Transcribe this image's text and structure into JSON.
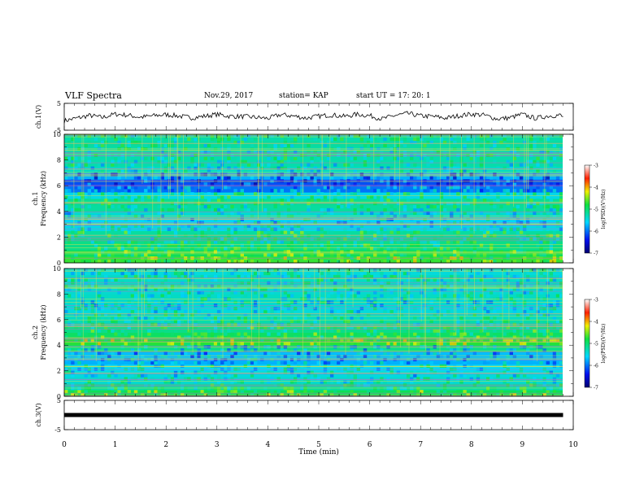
{
  "header": {
    "title": "VLF Spectra",
    "date": "Nov.29, 2017",
    "station": "station= KAP",
    "start": "start  UT  =    17: 20: 1"
  },
  "colors": {
    "bg_blue": "#1b3fd9",
    "cyan": "#1fd0e6",
    "green": "#5fe07a",
    "yellow": "#e8e04a",
    "red": "#e83a2a",
    "trace": "#000000"
  },
  "chart_data": [
    {
      "type": "line",
      "panel": "ch1-waveform",
      "ylabel": "ch.1(V)",
      "ylim": [
        -5,
        5
      ],
      "ytick_labels": [
        "5",
        "-5"
      ],
      "xlim": [
        0,
        10
      ],
      "x": [
        0,
        0.25,
        0.5,
        0.75,
        1.0,
        1.25,
        1.5,
        1.75,
        2.0,
        2.25,
        2.5,
        2.75,
        3.0,
        3.25,
        3.5,
        3.75,
        4.0,
        4.25,
        4.5,
        4.75,
        5.0,
        5.25,
        5.5,
        5.75,
        6.0,
        6.25,
        6.5,
        6.75,
        7.0,
        7.25,
        7.5,
        7.75,
        8.0,
        8.25,
        8.5,
        8.75,
        9.0,
        9.25,
        9.5,
        9.75,
        9.8
      ],
      "values": [
        -1.5,
        -0.5,
        0.5,
        -0.3,
        1.0,
        0.6,
        -0.2,
        0.4,
        0.8,
        0.3,
        -0.4,
        0.2,
        0.9,
        0.2,
        0.1,
        -0.2,
        -0.6,
        0.8,
        0.3,
        -0.5,
        0.2,
        0.7,
        0.1,
        0.9,
        0.4,
        -0.8,
        0.5,
        1.2,
        0.3,
        0.1,
        -0.5,
        0.4,
        1.0,
        0.6,
        -0.8,
        -0.4,
        0.9,
        -0.6,
        0.3,
        0.6,
        -0.3
      ]
    },
    {
      "type": "heatmap",
      "panel": "ch1-spectrogram",
      "ylabel": "ch.1\nFrequency  (kHz)",
      "xlim": [
        0,
        10
      ],
      "ylim": [
        0,
        10
      ],
      "ytick_labels": [
        "0",
        "2",
        "4",
        "6",
        "8",
        "10"
      ],
      "colorbar": {
        "label": "log(PSD)(V²/Hz)",
        "range": [
          -7,
          -3
        ],
        "tick_labels": [
          "-3",
          "-4",
          "-5",
          "-6",
          "-7"
        ]
      },
      "freq_khz": [
        0,
        0.5,
        1,
        1.5,
        2,
        2.5,
        3,
        3.5,
        4,
        4.5,
        5,
        5.5,
        6,
        6.5,
        7,
        7.5,
        8,
        8.5,
        9,
        9.5,
        10
      ],
      "log_psd": [
        -4.6,
        -4.8,
        -5.0,
        -5.2,
        -5.0,
        -5.4,
        -5.6,
        -5.5,
        -5.3,
        -5.1,
        -5.2,
        -5.8,
        -6.2,
        -6.1,
        -5.4,
        -5.3,
        -5.2,
        -5.3,
        -5.2,
        -5.2,
        -5.3
      ]
    },
    {
      "type": "heatmap",
      "panel": "ch2-spectrogram",
      "ylabel": "ch.2\nFrequency  (kHz)",
      "xlim": [
        0,
        10
      ],
      "ylim": [
        0,
        10
      ],
      "ytick_labels": [
        "0",
        "2",
        "4",
        "6",
        "8",
        "10"
      ],
      "colorbar": {
        "label": "log(PSD)(V²/Hz)",
        "range": [
          -7,
          -3
        ],
        "tick_labels": [
          "-3",
          "-4",
          "-5",
          "-6",
          "-7"
        ]
      },
      "freq_khz": [
        0,
        0.5,
        1,
        1.5,
        2,
        2.5,
        3,
        3.5,
        4,
        4.5,
        5,
        5.5,
        6,
        6.5,
        7,
        7.5,
        8,
        8.5,
        9,
        9.5,
        10
      ],
      "log_psd": [
        -4.7,
        -5.1,
        -5.3,
        -5.5,
        -5.4,
        -5.7,
        -5.8,
        -5.6,
        -4.6,
        -4.9,
        -5.0,
        -5.2,
        -5.3,
        -5.4,
        -5.5,
        -5.3,
        -5.4,
        -5.4,
        -5.3,
        -5.4,
        -5.5
      ]
    },
    {
      "type": "line",
      "panel": "ch3-waveform",
      "ylabel": "ch.3(V)",
      "ylim": [
        -5,
        5
      ],
      "ytick_labels": [
        "5",
        "-5"
      ],
      "xlim": [
        0,
        10
      ],
      "x": [
        0,
        9.8
      ],
      "values": [
        0,
        0
      ]
    }
  ],
  "xaxis": {
    "label": "Time  (min)",
    "tick_labels": [
      "0",
      "1",
      "2",
      "3",
      "4",
      "5",
      "6",
      "7",
      "8",
      "9",
      "10"
    ]
  }
}
